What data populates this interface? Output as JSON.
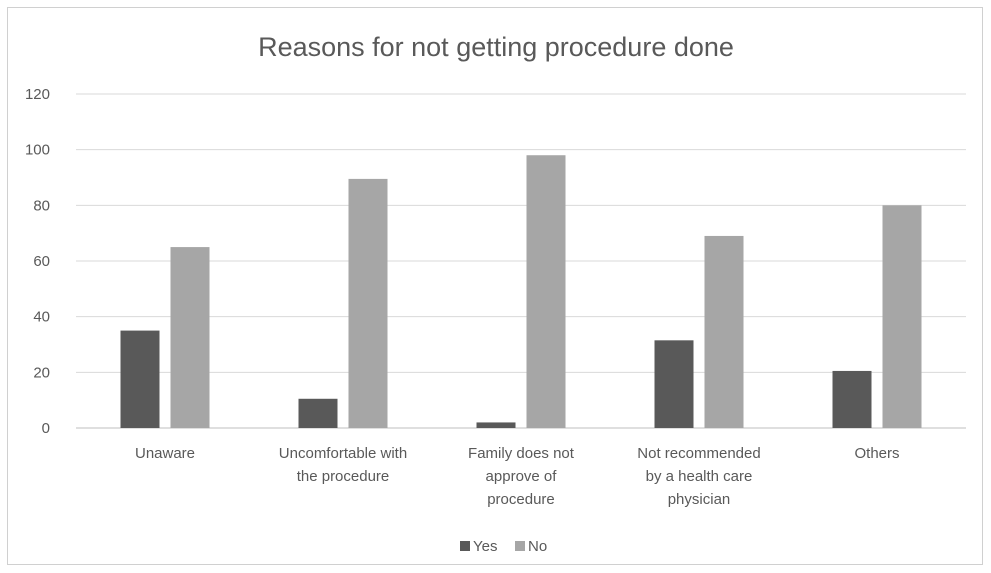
{
  "chart_data": {
    "type": "bar",
    "title": "Reasons for not getting procedure done",
    "categories": [
      [
        "Unaware"
      ],
      [
        "Uncomfortable with",
        "the procedure"
      ],
      [
        "Family does not",
        "approve of",
        "procedure"
      ],
      [
        "Not recommended",
        "by a health care",
        "physician"
      ],
      [
        "Others"
      ]
    ],
    "series": [
      {
        "name": "Yes",
        "color": "#595959",
        "values": [
          35,
          10.5,
          2,
          31.5,
          20.5
        ]
      },
      {
        "name": "No",
        "color": "#a6a6a6",
        "values": [
          65,
          89.5,
          98,
          69,
          80
        ]
      }
    ],
    "ylim": [
      0,
      120
    ],
    "yticks": [
      "0",
      "20",
      "40",
      "60",
      "80",
      "100",
      "120"
    ],
    "grid": true,
    "legend": "bottom"
  }
}
